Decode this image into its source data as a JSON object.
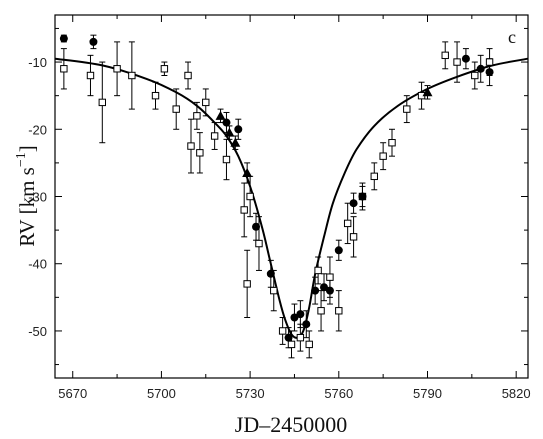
{
  "chart_data": {
    "type": "scatter",
    "panel_label": "c",
    "xlabel": "JD–2450000",
    "ylabel": {
      "main": "RV [km s",
      "superscript": "−1",
      "close": "]"
    },
    "xlim": [
      5664,
      5824
    ],
    "ylim": [
      -57,
      -3
    ],
    "xticks": [
      5670,
      5700,
      5730,
      5760,
      5790,
      5820
    ],
    "yticks": [
      -10,
      -20,
      -30,
      -40,
      -50
    ],
    "grid": false,
    "legend": "none",
    "series": [
      {
        "marker": "open-square",
        "points": [
          {
            "x": 5667,
            "y": -11,
            "err": 3
          },
          {
            "x": 5676,
            "y": -12,
            "err": 3
          },
          {
            "x": 5680,
            "y": -16,
            "err": 6
          },
          {
            "x": 5685,
            "y": -11,
            "err": 4
          },
          {
            "x": 5690,
            "y": -12,
            "err": 5
          },
          {
            "x": 5698,
            "y": -15,
            "err": 2
          },
          {
            "x": 5701,
            "y": -11,
            "err": 1
          },
          {
            "x": 5705,
            "y": -17,
            "err": 3
          },
          {
            "x": 5709,
            "y": -12,
            "err": 2
          },
          {
            "x": 5710,
            "y": -22.5,
            "err": 4
          },
          {
            "x": 5712,
            "y": -18,
            "err": 2
          },
          {
            "x": 5713,
            "y": -23.5,
            "err": 3
          },
          {
            "x": 5715,
            "y": -16,
            "err": 2
          },
          {
            "x": 5718,
            "y": -21,
            "err": 2
          },
          {
            "x": 5722,
            "y": -24.5,
            "err": 3
          },
          {
            "x": 5728,
            "y": -32,
            "err": 4
          },
          {
            "x": 5729,
            "y": -43,
            "err": 5
          },
          {
            "x": 5730,
            "y": -30,
            "err": 3
          },
          {
            "x": 5733,
            "y": -37,
            "err": 4
          },
          {
            "x": 5738,
            "y": -44,
            "err": 3
          },
          {
            "x": 5741,
            "y": -50,
            "err": 2
          },
          {
            "x": 5744,
            "y": -52,
            "err": 2
          },
          {
            "x": 5747,
            "y": -51,
            "err": 2
          },
          {
            "x": 5750,
            "y": -52,
            "err": 2
          },
          {
            "x": 5753,
            "y": -41,
            "err": 2
          },
          {
            "x": 5754,
            "y": -47,
            "err": 3
          },
          {
            "x": 5757,
            "y": -42,
            "err": 3
          },
          {
            "x": 5760,
            "y": -47,
            "err": 3
          },
          {
            "x": 5763,
            "y": -34,
            "err": 3
          },
          {
            "x": 5765,
            "y": -36,
            "err": 3
          },
          {
            "x": 5768,
            "y": -30,
            "err": 2
          },
          {
            "x": 5772,
            "y": -27,
            "err": 2
          },
          {
            "x": 5775,
            "y": -24,
            "err": 2
          },
          {
            "x": 5778,
            "y": -22,
            "err": 2
          },
          {
            "x": 5783,
            "y": -17,
            "err": 2
          },
          {
            "x": 5788,
            "y": -15,
            "err": 2
          },
          {
            "x": 5796,
            "y": -9,
            "err": 2
          },
          {
            "x": 5800,
            "y": -10,
            "err": 3
          },
          {
            "x": 5806,
            "y": -12,
            "err": 2
          },
          {
            "x": 5811,
            "y": -10,
            "err": 2
          }
        ]
      },
      {
        "marker": "filled-circle",
        "points": [
          {
            "x": 5667,
            "y": -6.5,
            "err": 0.5
          },
          {
            "x": 5677,
            "y": -7,
            "err": 1
          },
          {
            "x": 5722,
            "y": -19,
            "err": 1.5
          },
          {
            "x": 5726,
            "y": -20,
            "err": 1.5
          },
          {
            "x": 5732,
            "y": -34.5,
            "err": 2
          },
          {
            "x": 5737,
            "y": -41.5,
            "err": 2
          },
          {
            "x": 5743,
            "y": -51,
            "err": 1.5
          },
          {
            "x": 5745,
            "y": -48,
            "err": 2
          },
          {
            "x": 5747,
            "y": -47.5,
            "err": 2
          },
          {
            "x": 5749,
            "y": -49,
            "err": 2
          },
          {
            "x": 5752,
            "y": -44,
            "err": 2
          },
          {
            "x": 5755,
            "y": -43.5,
            "err": 2
          },
          {
            "x": 5757,
            "y": -44,
            "err": 2
          },
          {
            "x": 5760,
            "y": -38,
            "err": 1.5
          },
          {
            "x": 5765,
            "y": -31,
            "err": 1.5
          },
          {
            "x": 5768,
            "y": -30,
            "err": 1.5
          },
          {
            "x": 5803,
            "y": -9.5,
            "err": 1.5
          },
          {
            "x": 5808,
            "y": -11,
            "err": 2
          },
          {
            "x": 5811,
            "y": -11.5,
            "err": 2
          }
        ]
      },
      {
        "marker": "filled-triangle",
        "points": [
          {
            "x": 5720,
            "y": -18,
            "err": 1
          },
          {
            "x": 5723,
            "y": -20.5,
            "err": 1
          },
          {
            "x": 5725,
            "y": -22,
            "err": 1
          },
          {
            "x": 5729,
            "y": -26.5,
            "err": 1.5
          },
          {
            "x": 5790,
            "y": -14.5,
            "err": 1
          }
        ]
      }
    ],
    "model_curve": [
      [
        5664,
        -9.5
      ],
      [
        5680,
        -10.5
      ],
      [
        5695,
        -12.5
      ],
      [
        5705,
        -14.5
      ],
      [
        5712,
        -16.5
      ],
      [
        5718,
        -19
      ],
      [
        5722,
        -21
      ],
      [
        5726,
        -24
      ],
      [
        5730,
        -28.5
      ],
      [
        5734,
        -34.5
      ],
      [
        5737,
        -40
      ],
      [
        5740,
        -45.5
      ],
      [
        5742,
        -48.5
      ],
      [
        5744,
        -50.5
      ],
      [
        5746,
        -51
      ],
      [
        5748,
        -50
      ],
      [
        5750,
        -46.5
      ],
      [
        5752,
        -41.5
      ],
      [
        5755,
        -36
      ],
      [
        5758,
        -31
      ],
      [
        5762,
        -26.5
      ],
      [
        5766,
        -23
      ],
      [
        5772,
        -19.5
      ],
      [
        5780,
        -16.5
      ],
      [
        5790,
        -14
      ],
      [
        5800,
        -12.2
      ],
      [
        5812,
        -10.5
      ],
      [
        5824,
        -9.5
      ]
    ]
  }
}
